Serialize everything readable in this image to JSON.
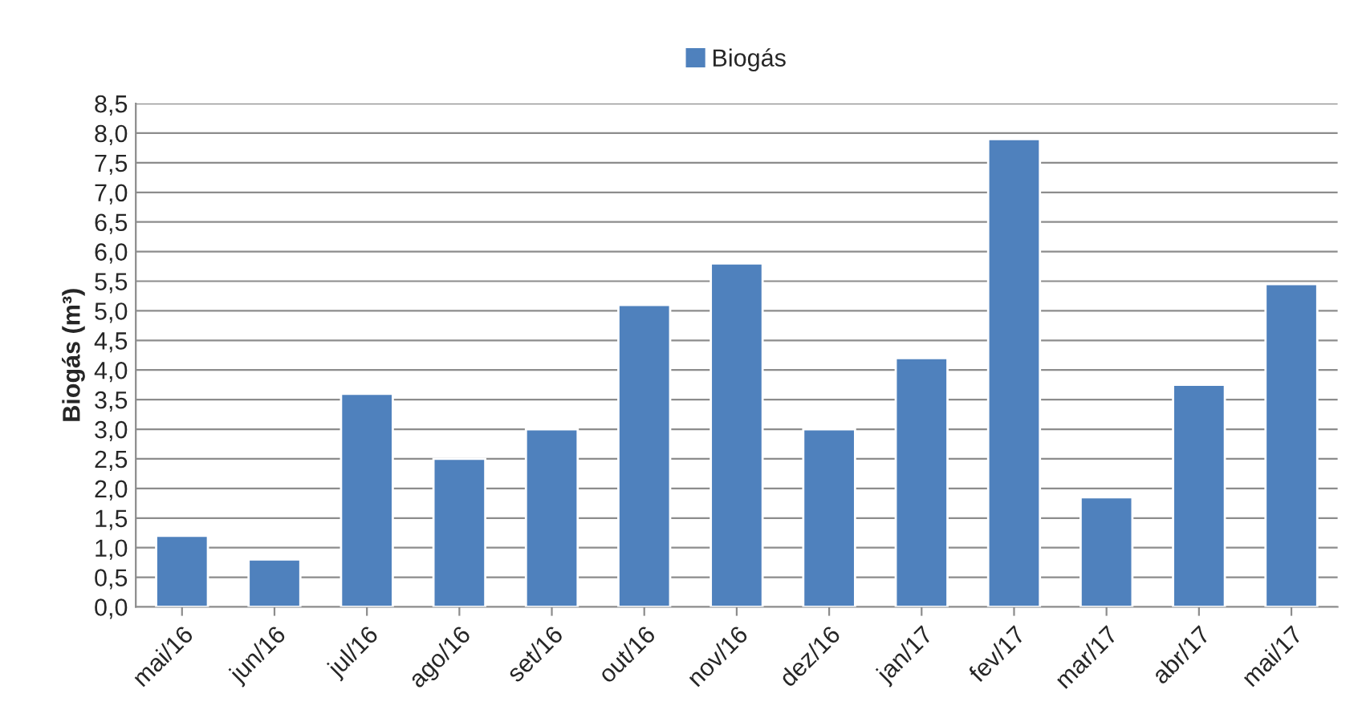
{
  "chart_data": {
    "type": "bar",
    "ylabel": "Biogás (m³)",
    "categories": [
      "mai/16",
      "jun/16",
      "jul/16",
      "ago/16",
      "set/16",
      "out/16",
      "nov/16",
      "dez/16",
      "jan/17",
      "fev/17",
      "mar/17",
      "abr/17",
      "mai/17"
    ],
    "series": [
      {
        "name": "Biogás",
        "color": "#4f81bd",
        "values": [
          1.2,
          0.8,
          3.6,
          2.5,
          3.0,
          5.1,
          5.8,
          3.0,
          4.2,
          7.9,
          1.85,
          3.75,
          5.45
        ]
      }
    ],
    "ylim": [
      0,
      8.5
    ],
    "yticks": [
      {
        "value": 0,
        "label": "0,0"
      },
      {
        "value": 0.5,
        "label": "0,5"
      },
      {
        "value": 1,
        "label": "1,0"
      },
      {
        "value": 1.5,
        "label": "1,5"
      },
      {
        "value": 2,
        "label": "2,0"
      },
      {
        "value": 2.5,
        "label": "2,5"
      },
      {
        "value": 3,
        "label": "3,0"
      },
      {
        "value": 3.5,
        "label": "3,5"
      },
      {
        "value": 4,
        "label": "4,0"
      },
      {
        "value": 4.5,
        "label": "4,5"
      },
      {
        "value": 5,
        "label": "5,0"
      },
      {
        "value": 5.5,
        "label": "5,5"
      },
      {
        "value": 6,
        "label": "6,0"
      },
      {
        "value": 6.5,
        "label": "6,5"
      },
      {
        "value": 7,
        "label": "7,0"
      },
      {
        "value": 7.5,
        "label": "7,5"
      },
      {
        "value": 8,
        "label": "8,0"
      },
      {
        "value": 8.5,
        "label": "8,5"
      }
    ],
    "grid": "y",
    "legend": "top"
  }
}
